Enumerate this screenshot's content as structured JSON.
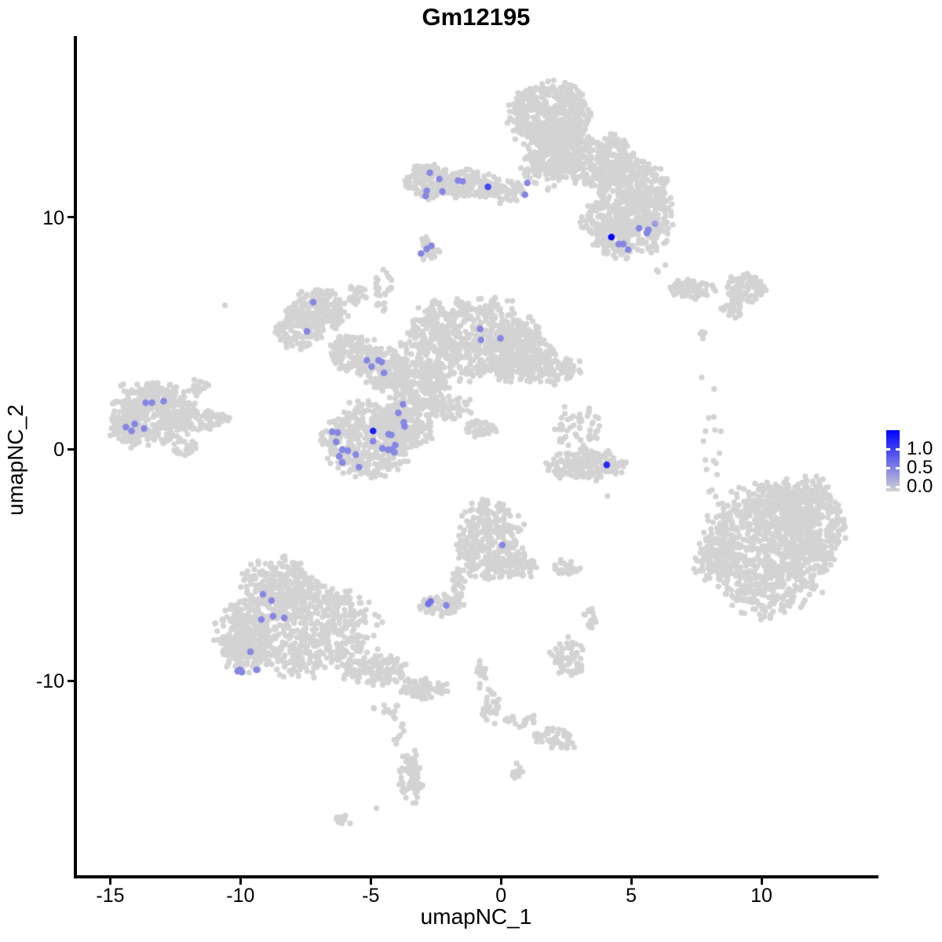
{
  "chart_data": {
    "type": "scatter",
    "title": "Gm12195",
    "xlabel": "umapNC_1",
    "ylabel": "umapNC_2",
    "x_ticks": [
      -15,
      -10,
      -5,
      0,
      5,
      10
    ],
    "y_ticks": [
      -10,
      0,
      10
    ],
    "x_range": [
      -16.34,
      14.43
    ],
    "y_range": [
      -18.47,
      17.76
    ],
    "grid": false,
    "legend_position": "right",
    "point_color_low": "#d3d3d3",
    "point_color_high": "#0000ff",
    "background_point_radius": 3.6,
    "highlight_point_radius": 4.3,
    "legend": {
      "labels": [
        "1.0",
        "0.5",
        "0.0"
      ],
      "values": [
        1.0,
        0.5,
        0.0
      ],
      "vmax": 1.5
    },
    "clusters": [
      [
        1.89,
        14.37,
        1.45,
        1.42,
        520
      ],
      [
        2.04,
        12.78,
        0.91,
        1.19,
        170
      ],
      [
        3.7,
        12.44,
        1.36,
        1.19,
        260
      ],
      [
        4.91,
        11.42,
        1.36,
        1.19,
        260
      ],
      [
        5.82,
        10.24,
        0.76,
        1.19,
        120
      ],
      [
        1.59,
        12.1,
        0.91,
        1.02,
        45
      ],
      [
        4.91,
        9.22,
        1.36,
        0.95,
        210
      ],
      [
        4.0,
        9.9,
        0.91,
        0.85,
        110
      ],
      [
        -2.79,
        11.59,
        0.85,
        0.75,
        130
      ],
      [
        -1.28,
        11.42,
        1.21,
        0.61,
        150
      ],
      [
        0.08,
        11.15,
        0.76,
        0.51,
        60
      ],
      [
        -2.79,
        8.61,
        0.39,
        0.47,
        28
      ],
      [
        7.33,
        6.92,
        0.85,
        0.41,
        65
      ],
      [
        9.38,
        6.98,
        0.82,
        0.61,
        95
      ],
      [
        8.84,
        5.97,
        0.42,
        0.34,
        22
      ],
      [
        7.72,
        4.88,
        0.24,
        0.2,
        5
      ],
      [
        -13.37,
        1.59,
        1.51,
        1.36,
        380
      ],
      [
        -14.43,
        0.92,
        0.6,
        0.85,
        90
      ],
      [
        -11.56,
        1.25,
        1.06,
        0.41,
        75
      ],
      [
        -11.62,
        2.61,
        0.39,
        0.37,
        22
      ],
      [
        -12.16,
        0.07,
        0.45,
        0.34,
        26
      ],
      [
        -7.02,
        6.0,
        1.06,
        0.85,
        160
      ],
      [
        -7.78,
        5.15,
        0.91,
        0.85,
        130
      ],
      [
        -5.66,
        4.14,
        0.91,
        0.85,
        130
      ],
      [
        -4.46,
        3.46,
        0.91,
        0.85,
        140
      ],
      [
        -1.13,
        4.81,
        2.42,
        1.69,
        620
      ],
      [
        0.68,
        4.14,
        1.21,
        1.19,
        260
      ],
      [
        1.89,
        3.56,
        1.06,
        0.68,
        120
      ],
      [
        -3.25,
        2.78,
        1.21,
        1.02,
        210
      ],
      [
        -5.06,
        0.41,
        1.66,
        1.53,
        420
      ],
      [
        -3.55,
        1.08,
        1.06,
        1.02,
        190
      ],
      [
        -1.89,
        1.76,
        0.91,
        0.47,
        60
      ],
      [
        -0.83,
        0.92,
        0.66,
        0.41,
        40
      ],
      [
        -5.51,
        6.68,
        0.45,
        0.41,
        25
      ],
      [
        -4.52,
        6.92,
        0.36,
        0.95,
        28
      ],
      [
        2.95,
        0.92,
        0.85,
        1.08,
        55
      ],
      [
        3.25,
        -0.68,
        1.45,
        0.61,
        170
      ],
      [
        8.08,
        -0.1,
        0.42,
        1.53,
        12
      ],
      [
        8.23,
        -2.81,
        0.36,
        1.42,
        10
      ],
      [
        10.2,
        -4.34,
        2.27,
        2.64,
        850
      ],
      [
        8.17,
        -4.75,
        0.79,
        0.88,
        85
      ],
      [
        11.86,
        -3.15,
        1.36,
        1.86,
        330
      ],
      [
        10.95,
        -2.14,
        1.51,
        0.75,
        130
      ],
      [
        -0.38,
        -4.0,
        1.27,
        1.63,
        310
      ],
      [
        0.83,
        -5.08,
        0.6,
        0.54,
        45
      ],
      [
        -1.59,
        -5.97,
        0.36,
        0.75,
        28
      ],
      [
        -2.34,
        -6.78,
        0.79,
        0.47,
        65
      ],
      [
        2.55,
        -5.08,
        0.54,
        0.34,
        26
      ],
      [
        3.4,
        -7.36,
        0.3,
        0.44,
        16
      ],
      [
        2.55,
        -9.05,
        0.6,
        0.88,
        55
      ],
      [
        -8.53,
        -5.76,
        1.36,
        1.02,
        210
      ],
      [
        -7.78,
        -7.73,
        2.87,
        1.86,
        720
      ],
      [
        -9.89,
        -8.47,
        0.91,
        1.19,
        160
      ],
      [
        -4.76,
        -9.59,
        1.21,
        0.68,
        130
      ],
      [
        -2.95,
        -10.34,
        0.85,
        0.47,
        65
      ],
      [
        -4.46,
        -11.36,
        0.6,
        0.34,
        12
      ],
      [
        -4.0,
        -11.97,
        0.24,
        0.85,
        10
      ],
      [
        -3.46,
        -14.17,
        0.45,
        1.08,
        75
      ],
      [
        -5.97,
        -15.97,
        0.36,
        0.24,
        13
      ],
      [
        -0.77,
        -9.69,
        0.21,
        0.61,
        16
      ],
      [
        -0.38,
        -11.12,
        0.3,
        0.75,
        26
      ],
      [
        0.74,
        -11.73,
        0.66,
        0.27,
        20
      ],
      [
        1.89,
        -12.34,
        0.76,
        0.34,
        26
      ],
      [
        2.37,
        -12.64,
        0.48,
        0.37,
        20
      ],
      [
        0.62,
        -13.9,
        0.24,
        0.34,
        10
      ],
      [
        -10.59,
        6.24,
        0.05,
        0.05,
        1
      ],
      [
        -4.79,
        -15.53,
        0.05,
        0.05,
        1
      ],
      [
        -0.74,
        -11.46,
        0.05,
        0.05,
        1
      ],
      [
        4.09,
        -2.03,
        0.05,
        0.05,
        1
      ],
      [
        6.0,
        7.69,
        0.06,
        0.06,
        2
      ],
      [
        6.3,
        7.97,
        0.05,
        0.05,
        1
      ],
      [
        7.72,
        3.12,
        0.05,
        0.05,
        1
      ],
      [
        8.17,
        2.58,
        0.05,
        0.05,
        1
      ],
      [
        -2.85,
        9.15,
        0.05,
        0.05,
        1
      ]
    ],
    "highlights": [
      [
        -2.73,
        11.93,
        0.55
      ],
      [
        -2.37,
        11.66,
        0.55
      ],
      [
        -1.65,
        11.59,
        0.55
      ],
      [
        -1.47,
        11.56,
        0.55
      ],
      [
        -2.85,
        11.15,
        0.55
      ],
      [
        -2.25,
        11.12,
        0.55
      ],
      [
        -2.89,
        10.92,
        0.55
      ],
      [
        -0.5,
        11.32,
        1.0
      ],
      [
        1.01,
        11.49,
        0.55
      ],
      [
        0.92,
        10.98,
        0.55
      ],
      [
        -3.07,
        8.44,
        0.55
      ],
      [
        -2.85,
        8.64,
        0.55
      ],
      [
        -2.67,
        8.78,
        0.55
      ],
      [
        4.24,
        9.15,
        1.5
      ],
      [
        4.52,
        8.85,
        0.55
      ],
      [
        4.7,
        8.85,
        0.55
      ],
      [
        4.88,
        8.61,
        0.55
      ],
      [
        5.3,
        9.53,
        0.55
      ],
      [
        5.6,
        9.32,
        0.55
      ],
      [
        5.66,
        9.46,
        0.55
      ],
      [
        5.91,
        9.73,
        0.4
      ],
      [
        -7.21,
        6.34,
        0.55
      ],
      [
        -7.45,
        5.08,
        0.55
      ],
      [
        -5.15,
        3.83,
        0.55
      ],
      [
        -4.97,
        3.56,
        0.55
      ],
      [
        -4.7,
        3.83,
        0.55
      ],
      [
        -4.58,
        3.76,
        0.55
      ],
      [
        -4.49,
        3.29,
        0.55
      ],
      [
        -0.8,
        5.19,
        0.55
      ],
      [
        -0.77,
        4.71,
        0.55
      ],
      [
        -0.02,
        4.78,
        0.55
      ],
      [
        -3.76,
        1.93,
        0.55
      ],
      [
        -3.94,
        1.56,
        0.55
      ],
      [
        -3.73,
        1.15,
        0.55
      ],
      [
        -3.7,
        0.98,
        0.55
      ],
      [
        -4.91,
        0.78,
        1.3
      ],
      [
        -4.31,
        0.64,
        0.55
      ],
      [
        -4.21,
        0.61,
        0.55
      ],
      [
        -6.48,
        0.75,
        0.55
      ],
      [
        -6.27,
        0.71,
        0.55
      ],
      [
        -6.33,
        0.31,
        0.55
      ],
      [
        -4.91,
        0.34,
        0.55
      ],
      [
        -4.06,
        0.17,
        0.55
      ],
      [
        -4.55,
        0.03,
        0.55
      ],
      [
        -4.33,
        -0.03,
        0.55
      ],
      [
        -4.18,
        -0.03,
        0.55
      ],
      [
        -4.09,
        -0.14,
        0.55
      ],
      [
        -6.09,
        -0.03,
        0.55
      ],
      [
        -5.88,
        -0.07,
        0.55
      ],
      [
        -5.57,
        -0.24,
        0.55
      ],
      [
        -6.21,
        -0.31,
        0.55
      ],
      [
        -6.09,
        -0.58,
        0.55
      ],
      [
        -5.45,
        -0.78,
        0.55
      ],
      [
        -13.64,
        2.0,
        0.55
      ],
      [
        -13.4,
        2.0,
        0.55
      ],
      [
        -12.95,
        2.07,
        0.55
      ],
      [
        -14.4,
        0.95,
        0.55
      ],
      [
        -14.06,
        1.08,
        0.55
      ],
      [
        -14.18,
        0.78,
        0.55
      ],
      [
        -13.7,
        0.88,
        0.55
      ],
      [
        -9.14,
        -6.27,
        0.55
      ],
      [
        -8.81,
        -6.54,
        0.55
      ],
      [
        -8.75,
        -7.22,
        0.55
      ],
      [
        -9.2,
        -7.36,
        0.55
      ],
      [
        -8.32,
        -7.29,
        0.55
      ],
      [
        -9.62,
        -8.75,
        0.55
      ],
      [
        -10.02,
        -9.53,
        0.55
      ],
      [
        -10.11,
        -9.59,
        0.55
      ],
      [
        -9.95,
        -9.63,
        0.55
      ],
      [
        -9.38,
        -9.53,
        0.55
      ],
      [
        0.05,
        -4.14,
        0.55
      ],
      [
        -2.7,
        -6.58,
        0.7
      ],
      [
        -2.79,
        -6.68,
        0.7
      ],
      [
        -2.1,
        -6.75,
        0.55
      ],
      [
        4.06,
        -0.68,
        1.2
      ]
    ]
  }
}
